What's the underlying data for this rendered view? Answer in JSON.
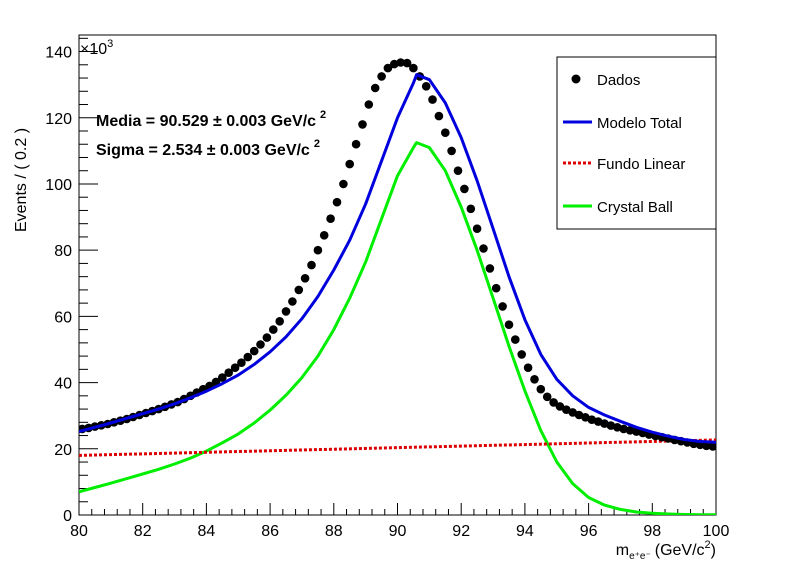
{
  "chart_data": {
    "type": "line",
    "xlabel_main": "m",
    "xlabel_sub": "e⁺e⁻",
    "xlabel_units": "(GeV/c",
    "xlabel_units_sup": "2",
    "xlabel_close": ")",
    "ylabel": "Events / ( 0.2 )",
    "y_multiplier": "×10",
    "y_multiplier_sup": "3",
    "xlim": [
      80,
      100
    ],
    "ylim": [
      0,
      145000
    ],
    "x_ticks": [
      80,
      82,
      84,
      86,
      88,
      90,
      92,
      94,
      96,
      98,
      100
    ],
    "y_ticks": [
      0,
      20000,
      40000,
      60000,
      80000,
      100000,
      120000,
      140000
    ],
    "y_tick_labels": [
      "0",
      "20",
      "40",
      "60",
      "80",
      "100",
      "120",
      "140"
    ],
    "grid": false,
    "legend_position": "top-right",
    "annotations": [
      {
        "name": "Media",
        "value": "90.529",
        "error": "0.003",
        "unit": "GeV/c",
        "unit_sup": "2"
      },
      {
        "name": "Sigma",
        "value": "2.534",
        "error": "0.003",
        "unit": "GeV/c",
        "unit_sup": "2"
      }
    ],
    "series": [
      {
        "name": "Dados",
        "kind": "points",
        "color": "#000000",
        "x": [
          80.1,
          80.3,
          80.5,
          80.7,
          80.9,
          81.1,
          81.3,
          81.5,
          81.7,
          81.9,
          82.1,
          82.3,
          82.5,
          82.7,
          82.9,
          83.1,
          83.3,
          83.5,
          83.7,
          83.9,
          84.1,
          84.3,
          84.5,
          84.7,
          84.9,
          85.1,
          85.3,
          85.5,
          85.7,
          85.9,
          86.1,
          86.3,
          86.5,
          86.7,
          86.9,
          87.1,
          87.3,
          87.5,
          87.7,
          87.9,
          88.1,
          88.3,
          88.5,
          88.7,
          88.9,
          89.1,
          89.3,
          89.5,
          89.7,
          89.9,
          90.1,
          90.3,
          90.5,
          90.7,
          90.9,
          91.1,
          91.3,
          91.5,
          91.7,
          91.9,
          92.1,
          92.3,
          92.5,
          92.7,
          92.9,
          93.1,
          93.3,
          93.5,
          93.7,
          93.9,
          94.1,
          94.3,
          94.5,
          94.7,
          94.9,
          95.1,
          95.3,
          95.5,
          95.7,
          95.9,
          96.1,
          96.3,
          96.5,
          96.7,
          96.9,
          97.1,
          97.3,
          97.5,
          97.7,
          97.9,
          98.1,
          98.3,
          98.5,
          98.7,
          98.9,
          99.1,
          99.3,
          99.5,
          99.7,
          99.9
        ],
        "y": [
          26000,
          26300,
          26700,
          27100,
          27500,
          28000,
          28500,
          29000,
          29600,
          30200,
          30800,
          31400,
          32000,
          32700,
          33400,
          34100,
          35000,
          36000,
          37000,
          38000,
          39000,
          40200,
          41500,
          43000,
          44500,
          46000,
          47700,
          49500,
          51500,
          53600,
          56000,
          58500,
          61500,
          64500,
          68000,
          71500,
          75500,
          80000,
          84500,
          89500,
          94500,
          100000,
          106000,
          112000,
          118000,
          124000,
          129000,
          132500,
          135000,
          136200,
          136700,
          136500,
          135000,
          132500,
          129500,
          125500,
          120500,
          115500,
          110000,
          104000,
          98500,
          92500,
          86500,
          80500,
          74500,
          68500,
          63000,
          57500,
          53000,
          48500,
          44500,
          41000,
          38000,
          35700,
          34000,
          32800,
          31800,
          31000,
          30200,
          29500,
          28800,
          28200,
          27600,
          27000,
          26500,
          26000,
          25600,
          25200,
          24800,
          24300,
          23900,
          23500,
          23100,
          22700,
          22300,
          21900,
          21500,
          21200,
          20900,
          20700
        ]
      },
      {
        "name": "Modelo Total",
        "kind": "line",
        "color": "#0000dd",
        "x": [
          80,
          80.5,
          81,
          81.5,
          82,
          82.5,
          83,
          83.5,
          84,
          84.5,
          85,
          85.5,
          86,
          86.5,
          87,
          87.5,
          88,
          88.5,
          89,
          89.5,
          90,
          90.5,
          90.6,
          91,
          91.5,
          92,
          92.5,
          93,
          93.5,
          94,
          94.5,
          95,
          95.5,
          96,
          96.5,
          97,
          97.5,
          98,
          98.5,
          99,
          99.5,
          100
        ],
        "y": [
          25200,
          26500,
          27800,
          29200,
          30600,
          32000,
          33600,
          35400,
          37400,
          39700,
          42300,
          45500,
          49300,
          53800,
          59300,
          66000,
          74000,
          83000,
          94000,
          107000,
          120000,
          130500,
          133000,
          131500,
          124500,
          114000,
          101000,
          86500,
          72000,
          59000,
          48500,
          41000,
          36000,
          32500,
          30200,
          28300,
          26500,
          25000,
          23800,
          22800,
          22200,
          22000
        ]
      },
      {
        "name": "Fundo Linear",
        "kind": "dashed",
        "color": "#dd0000",
        "x": [
          80,
          100
        ],
        "y": [
          18000,
          22700
        ]
      },
      {
        "name": "Crystal Ball",
        "kind": "line",
        "color": "#00ee00",
        "x": [
          80,
          80.5,
          81,
          81.5,
          82,
          82.5,
          83,
          83.5,
          84,
          84.5,
          85,
          85.5,
          86,
          86.5,
          87,
          87.5,
          88,
          88.5,
          89,
          89.5,
          90,
          90.5,
          90.6,
          91,
          91.5,
          92,
          92.5,
          93,
          93.5,
          94,
          94.5,
          95,
          95.5,
          96,
          96.5,
          97,
          97.5,
          98,
          98.5,
          99,
          99.5,
          100
        ],
        "y": [
          7000,
          8300,
          9600,
          11000,
          12400,
          13800,
          15400,
          17200,
          19300,
          21800,
          24500,
          27800,
          31700,
          36200,
          41500,
          48000,
          56000,
          65500,
          76500,
          89500,
          102500,
          111000,
          112500,
          111000,
          104000,
          93000,
          80000,
          65500,
          51000,
          37500,
          25500,
          16000,
          9500,
          5300,
          3000,
          1700,
          900,
          500,
          300,
          150,
          80,
          50
        ]
      }
    ]
  }
}
